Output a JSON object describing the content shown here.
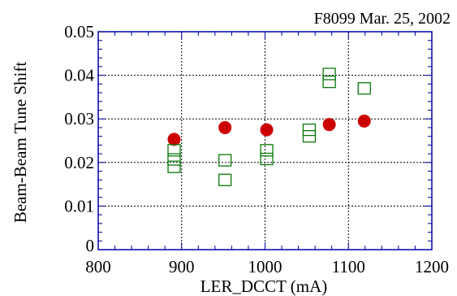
{
  "chart_data": {
    "type": "scatter",
    "annotation": "F8099 Mar. 25, 2002",
    "xlabel": "LER_DCCT (mA)",
    "ylabel": "Beam-Beam Tune Shift",
    "xlim": [
      800,
      1200
    ],
    "ylim": [
      0,
      0.05
    ],
    "xticks": [
      800,
      900,
      1000,
      1100,
      1200
    ],
    "yticks": [
      0,
      0.01,
      0.02,
      0.03,
      0.04,
      0.05
    ],
    "xtick_labels": [
      "800",
      "900",
      "1000",
      "1100",
      "1200"
    ],
    "ytick_labels": [
      "0",
      "0.01",
      "0.02",
      "0.03",
      "0.04",
      "0.05"
    ],
    "grid": true,
    "series": [
      {
        "marker": "filled-circle",
        "color": "#cc0000",
        "points": [
          {
            "x": 891,
            "y": 0.0253
          },
          {
            "x": 952,
            "y": 0.028
          },
          {
            "x": 1002,
            "y": 0.0275
          },
          {
            "x": 1077,
            "y": 0.0287
          },
          {
            "x": 1119,
            "y": 0.0295
          }
        ]
      },
      {
        "marker": "open-square",
        "color": "#0a7a0a",
        "points": [
          {
            "x": 891,
            "y": 0.0228
          },
          {
            "x": 891,
            "y": 0.0207
          },
          {
            "x": 891,
            "y": 0.019
          },
          {
            "x": 952,
            "y": 0.0205
          },
          {
            "x": 952,
            "y": 0.016
          },
          {
            "x": 1002,
            "y": 0.0228
          },
          {
            "x": 1002,
            "y": 0.0208
          },
          {
            "x": 1053,
            "y": 0.0275
          },
          {
            "x": 1053,
            "y": 0.026
          },
          {
            "x": 1077,
            "y": 0.0403
          },
          {
            "x": 1077,
            "y": 0.0385
          },
          {
            "x": 1119,
            "y": 0.037
          }
        ]
      }
    ]
  }
}
